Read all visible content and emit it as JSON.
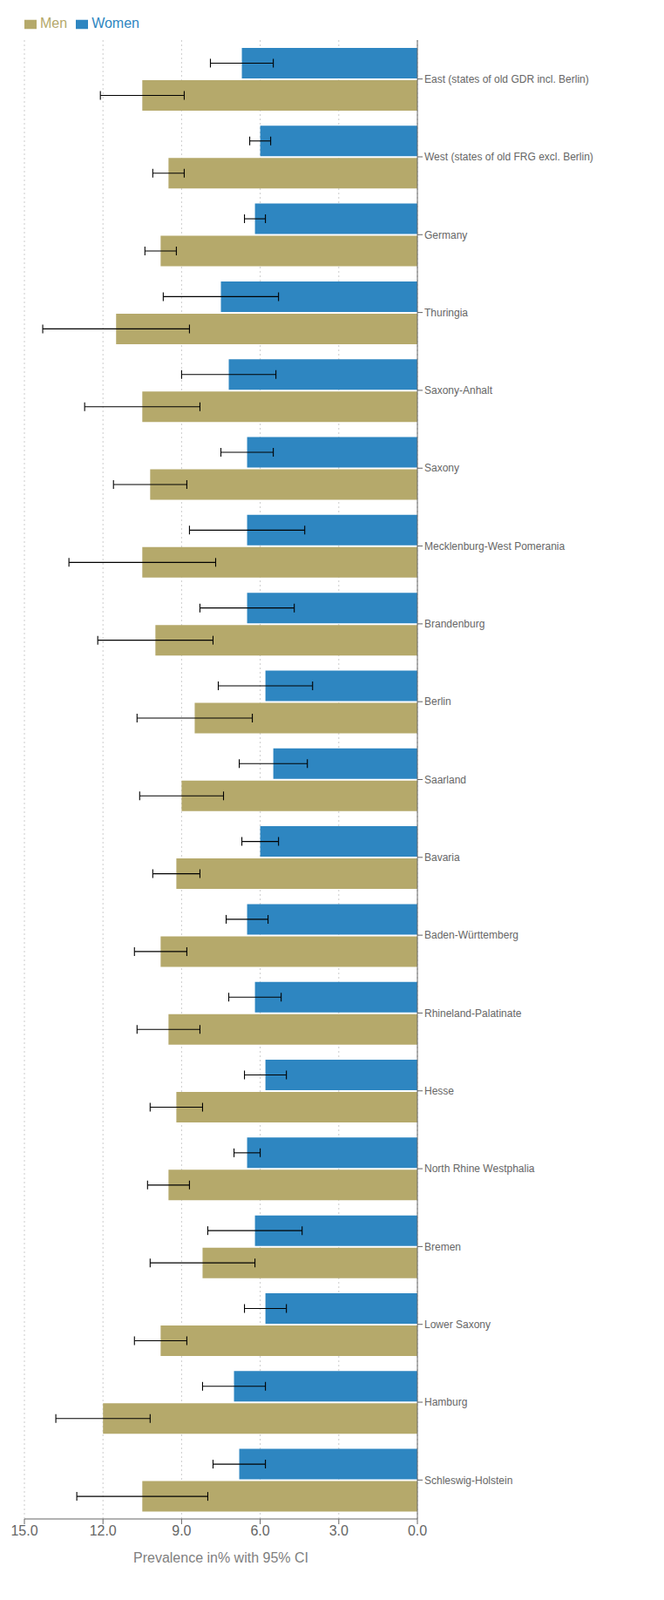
{
  "chart_data": {
    "type": "bar",
    "orientation": "horizontal",
    "categories": [
      "Schleswig-Holstein",
      "Hamburg",
      "Lower Saxony",
      "Bremen",
      "North Rhine Westphalia",
      "Hesse",
      "Rhineland-Palatinate",
      "Baden-Württemberg",
      "Bavaria",
      "Saarland",
      "Berlin",
      "Brandenburg",
      "Mecklenburg-West Pomerania",
      "Saxony",
      "Saxony-Anhalt",
      "Thuringia",
      "Germany",
      "West (states of old FRG excl. Berlin)",
      "East (states of old GDR incl. Berlin)"
    ],
    "series": [
      {
        "name": "Women",
        "color": "#2e86c1",
        "values": [
          6.8,
          7.0,
          5.8,
          6.2,
          6.5,
          5.8,
          6.2,
          6.5,
          6.0,
          5.5,
          5.8,
          6.5,
          6.5,
          6.5,
          7.2,
          7.5,
          6.2,
          6.0,
          6.7
        ],
        "errors_low": [
          1.0,
          1.2,
          0.8,
          1.8,
          0.5,
          0.8,
          1.0,
          0.8,
          0.7,
          1.3,
          1.8,
          1.8,
          2.2,
          1.0,
          1.8,
          2.2,
          0.4,
          0.4,
          1.2
        ],
        "errors_high": [
          1.0,
          1.2,
          0.8,
          1.8,
          0.5,
          0.8,
          1.0,
          0.8,
          0.7,
          1.3,
          1.8,
          1.8,
          2.2,
          1.0,
          1.8,
          2.2,
          0.4,
          0.4,
          1.2
        ]
      },
      {
        "name": "Men",
        "color": "#b5a96b",
        "values": [
          10.5,
          12.0,
          9.8,
          8.2,
          9.5,
          9.2,
          9.5,
          9.8,
          9.2,
          9.0,
          8.5,
          10.0,
          10.5,
          10.2,
          10.5,
          11.5,
          9.8,
          9.5,
          10.5
        ],
        "errors_low": [
          2.5,
          1.8,
          1.0,
          2.0,
          0.8,
          1.0,
          1.2,
          1.0,
          0.9,
          1.6,
          2.2,
          2.2,
          2.8,
          1.4,
          2.2,
          2.8,
          0.6,
          0.6,
          1.6
        ],
        "errors_high": [
          2.5,
          1.8,
          1.0,
          2.0,
          0.8,
          1.0,
          1.2,
          1.0,
          0.9,
          1.6,
          2.2,
          2.2,
          2.8,
          1.4,
          2.2,
          2.8,
          0.6,
          0.6,
          1.6
        ]
      }
    ],
    "xlabel": "Prevalence in% with 95% CI",
    "xlim": [
      15.0,
      0.0
    ],
    "xticks": [
      {
        "value": 15.0,
        "label": "15.0"
      },
      {
        "value": 12.0,
        "label": "12.0"
      },
      {
        "value": 9.0,
        "label": "9.0"
      },
      {
        "value": 6.0,
        "label": "6.0"
      },
      {
        "value": 3.0,
        "label": "3.0"
      },
      {
        "value": 0.0,
        "label": "0.0"
      }
    ],
    "grid": true,
    "legend": "upper left"
  }
}
